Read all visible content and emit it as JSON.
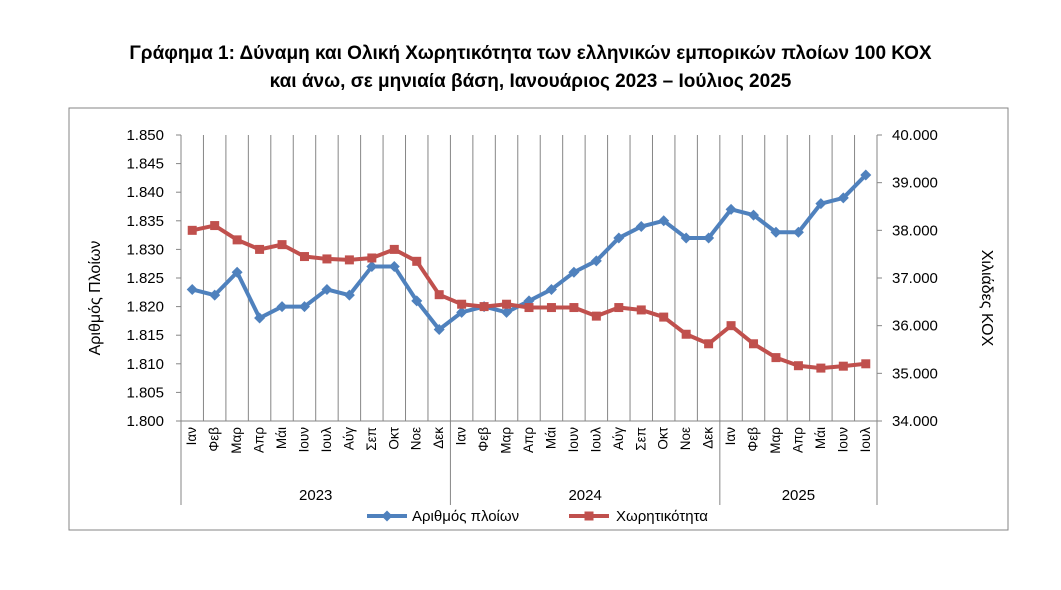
{
  "chart_data": {
    "type": "line",
    "title_line1": "Γράφημα 1: Δύναμη και Ολική Χωρητικότητα των ελληνικών εμπορικών πλοίων 100 ΚΟΧ",
    "title_line2": "και άνω, σε μηνιαία βάση, Ιανουάριος 2023 – Ιούλιος 2025",
    "ylabel_left": "Αριθμός Πλοίων",
    "ylabel_right": "Χιλιάδες ΚΟΧ",
    "y_left": {
      "min": 1800,
      "max": 1850,
      "step": 5,
      "tick_labels": [
        "1.800",
        "1.805",
        "1.810",
        "1.815",
        "1.820",
        "1.825",
        "1.830",
        "1.835",
        "1.840",
        "1.845",
        "1.850"
      ]
    },
    "y_right": {
      "min": 34000,
      "max": 40000,
      "step": 1000,
      "tick_labels": [
        "34.000",
        "35.000",
        "36.000",
        "37.000",
        "38.000",
        "39.000",
        "40.000"
      ]
    },
    "categories": [
      "Ιαν",
      "Φεβ",
      "Μαρ",
      "Απρ",
      "Μάι",
      "Ιουν",
      "Ιουλ",
      "Αύγ",
      "Σεπ",
      "Οκτ",
      "Νοε",
      "Δεκ",
      "Ιαν",
      "Φεβ",
      "Μαρ",
      "Απρ",
      "Μάι",
      "Ιουν",
      "Ιουλ",
      "Αύγ",
      "Σεπ",
      "Οκτ",
      "Νοε",
      "Δεκ",
      "Ιαν",
      "Φεβ",
      "Μαρ",
      "Απρ",
      "Μάι",
      "Ιουν",
      "Ιουλ"
    ],
    "years": [
      {
        "label": "2023",
        "count": 12
      },
      {
        "label": "2024",
        "count": 12
      },
      {
        "label": "2025",
        "count": 7
      }
    ],
    "series": [
      {
        "name": "Αριθμός πλοίων",
        "axis": "left",
        "color": "#4f81bd",
        "marker": "diamond",
        "values": [
          1823,
          1822,
          1826,
          1818,
          1820,
          1820,
          1823,
          1822,
          1827,
          1827,
          1821,
          1816,
          1819,
          1820,
          1819,
          1821,
          1823,
          1826,
          1828,
          1832,
          1834,
          1835,
          1832,
          1832,
          1837,
          1836,
          1833,
          1833,
          1838,
          1839,
          1843
        ]
      },
      {
        "name": "Χωρητικότητα",
        "axis": "right",
        "color": "#c0504d",
        "marker": "square",
        "values": [
          38000,
          38100,
          37800,
          37600,
          37700,
          37450,
          37400,
          37380,
          37420,
          37600,
          37350,
          36650,
          36450,
          36400,
          36450,
          36380,
          36380,
          36380,
          36200,
          36380,
          36330,
          36180,
          35820,
          35620,
          36000,
          35620,
          35330,
          35160,
          35110,
          35150,
          35200
        ]
      }
    ],
    "legend_position": "bottom",
    "grid": {
      "vertical": true,
      "horizontal": false
    }
  }
}
